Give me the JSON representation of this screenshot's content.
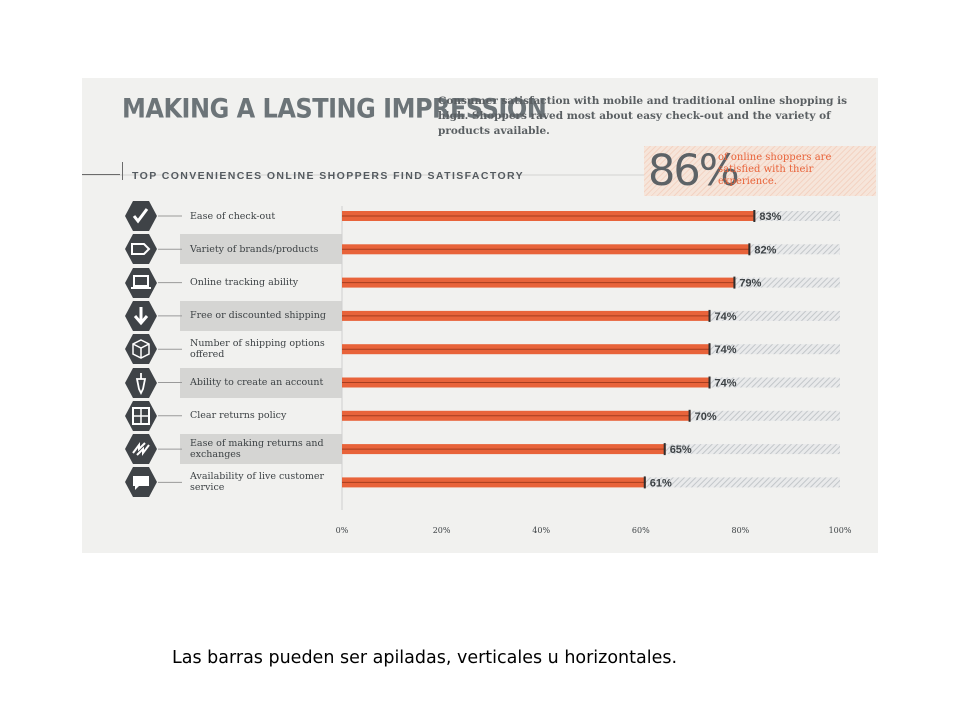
{
  "header": {
    "title": "MAKING A LASTING IMPRESSION",
    "subtitle": "Consumer satisfaction with mobile and traditional online shopping is high. Shoppers raved most about easy check-out and the variety of products available."
  },
  "section_heading": "TOP CONVENIENCES ONLINE SHOPPERS FIND SATISFACTORY",
  "callout": {
    "value": "86%",
    "text": "of online shoppers are satisfied with their experience."
  },
  "chart_data": {
    "type": "bar",
    "orientation": "horizontal",
    "title": "TOP CONVENIENCES ONLINE SHOPPERS FIND SATISFACTORY",
    "categories": [
      "Ease of check-out",
      "Variety of brands/products",
      "Online tracking ability",
      "Free or discounted shipping",
      "Number of shipping options offered",
      "Ability to create an account",
      "Clear returns policy",
      "Ease of making returns and exchanges",
      "Availability of live customer service"
    ],
    "values": [
      83,
      82,
      79,
      74,
      74,
      74,
      70,
      65,
      61
    ],
    "value_labels": [
      "83%",
      "82%",
      "79%",
      "74%",
      "74%",
      "74%",
      "70%",
      "65%",
      "61%"
    ],
    "xlim": [
      0,
      100
    ],
    "x_ticks": [
      "0%",
      "20%",
      "40%",
      "60%",
      "80%",
      "100%"
    ],
    "grid": false,
    "colors": {
      "bar": "#e8633a",
      "bar_outline": "#a63d1f",
      "remainder_hatch": "#c9cccf",
      "text": "#3d4245"
    }
  },
  "icons": [
    "check-icon",
    "tag-icon",
    "laptop-icon",
    "down-arrow-icon",
    "box-icon",
    "pen-nib-icon",
    "window-icon",
    "return-arrows-icon",
    "speech-bubble-icon"
  ],
  "footer_caption": "Las barras pueden ser apiladas, verticales u horizontales."
}
